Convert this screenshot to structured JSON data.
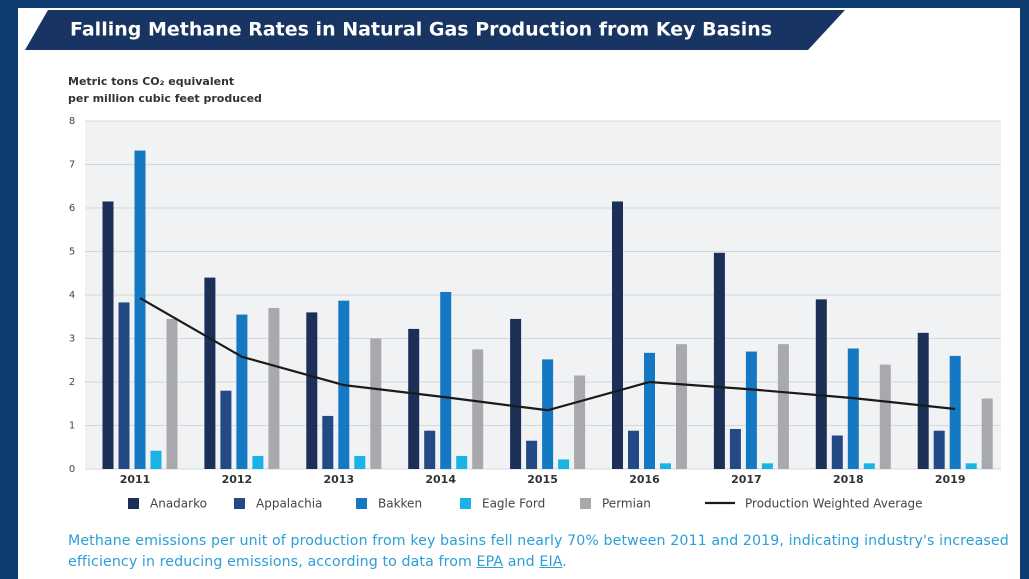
{
  "chart_data": {
    "type": "bar",
    "title": "Falling Methane Rates in Natural Gas Production from Key Basins",
    "y_label": [
      "Metric tons CO₂ equivalent",
      "per million cubic feet produced"
    ],
    "categories": [
      "2011",
      "2012",
      "2013",
      "2014",
      "2015",
      "2016",
      "2017",
      "2018",
      "2019"
    ],
    "series": [
      {
        "name": "Anadarko",
        "color": "#1b2f57",
        "values": [
          6.15,
          4.4,
          3.6,
          3.22,
          3.45,
          6.15,
          4.97,
          3.9,
          3.13
        ]
      },
      {
        "name": "Appalachia",
        "color": "#244a86",
        "values": [
          3.83,
          1.8,
          1.22,
          0.88,
          0.65,
          0.88,
          0.92,
          0.77,
          0.88
        ]
      },
      {
        "name": "Bakken",
        "color": "#1479c2",
        "values": [
          7.32,
          3.55,
          3.87,
          4.07,
          2.52,
          2.67,
          2.7,
          2.77,
          2.6
        ]
      },
      {
        "name": "Eagle Ford",
        "color": "#1ab3e6",
        "values": [
          0.42,
          0.3,
          0.3,
          0.3,
          0.22,
          0.13,
          0.13,
          0.13,
          0.13
        ]
      },
      {
        "name": "Permian",
        "color": "#a7a9ac",
        "values": [
          3.45,
          3.7,
          3.0,
          2.75,
          2.15,
          2.87,
          2.87,
          2.4,
          1.62
        ]
      },
      {
        "name": "Production Weighted Average",
        "color": "#1a1a1a",
        "type": "line",
        "values": [
          3.93,
          2.58,
          1.93,
          1.65,
          1.35,
          2.0,
          1.83,
          1.63,
          1.38
        ]
      }
    ],
    "ylim": [
      0,
      8
    ],
    "yticks": [
      0,
      1,
      2,
      3,
      4,
      5,
      6,
      7,
      8
    ],
    "grid": true
  },
  "caption": {
    "text1": "Methane emissions per unit of production from key basins fell nearly 70% between 2011 and 2019, indicating industry's increased efficiency in reducing emissions, according to data from ",
    "link1": "EPA",
    "text2": " and ",
    "link2": "EIA",
    "text3": "."
  }
}
